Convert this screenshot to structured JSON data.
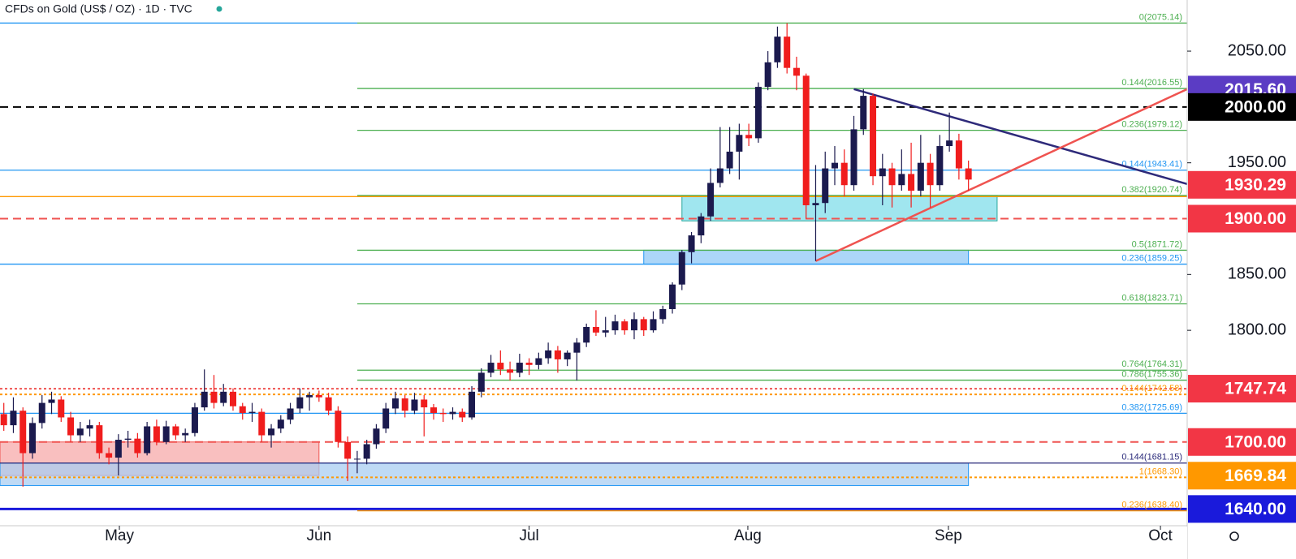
{
  "chart_data": {
    "type": "candlestick",
    "title": "CFDs on Gold (US$ / OZ) · 1D · TVC",
    "up_color": "#1b1a4e",
    "down_color": "#f01d1d",
    "xlim": [
      -0.4,
      123.9
    ],
    "ylim": [
      1625,
      2095.8
    ],
    "xticks": [
      {
        "value": 12.1,
        "label": "May"
      },
      {
        "value": 33,
        "label": "Jun"
      },
      {
        "value": 55,
        "label": "Jul"
      },
      {
        "value": 77.9,
        "label": "Aug"
      },
      {
        "value": 98.9,
        "label": "Sep"
      },
      {
        "value": 121.1,
        "label": "Oct"
      }
    ],
    "yticks": [
      {
        "value": 2050,
        "label": "2050.00"
      },
      {
        "value": 1950,
        "label": "1950.00"
      },
      {
        "value": 1850,
        "label": "1850.00"
      },
      {
        "value": 1800,
        "label": "1800.00"
      }
    ],
    "open": [
      1725,
      1715,
      1728,
      1690,
      1717,
      1735,
      1738,
      1722,
      1706,
      1712,
      1715,
      1690,
      1686,
      1702,
      1703,
      1690,
      1714,
      1700,
      1714,
      1706,
      1708,
      1731,
      1745,
      1735,
      1745,
      1732,
      1726,
      1727,
      1706,
      1712,
      1720,
      1730,
      1740,
      1742,
      1740,
      1728,
      1700,
      1685,
      1685,
      1698,
      1712,
      1730,
      1739,
      1728,
      1738,
      1731,
      1726,
      1725,
      1727,
      1722,
      1745,
      1762,
      1771,
      1765,
      1762,
      1771,
      1769,
      1775,
      1782,
      1774,
      1780,
      1789,
      1803,
      1798,
      1800,
      1808,
      1800,
      1810,
      1800,
      1810,
      1819,
      1841,
      1870,
      1885,
      1902,
      1932,
      1945,
      1960,
      1975,
      1972,
      2018,
      2040,
      2063,
      2035,
      2028,
      1912,
      1914,
      1945,
      1950,
      1930,
      1980,
      2010,
      1938,
      1945,
      1930,
      1940,
      1925,
      1950,
      1930,
      1965,
      1970,
      1945
    ],
    "high": [
      1735,
      1740,
      1731,
      1722,
      1742,
      1745,
      1741,
      1727,
      1718,
      1720,
      1718,
      1695,
      1707,
      1710,
      1708,
      1718,
      1720,
      1719,
      1716,
      1712,
      1735,
      1765,
      1760,
      1752,
      1748,
      1735,
      1735,
      1730,
      1716,
      1724,
      1735,
      1748,
      1745,
      1746,
      1744,
      1732,
      1705,
      1692,
      1702,
      1716,
      1735,
      1745,
      1742,
      1744,
      1742,
      1734,
      1730,
      1731,
      1730,
      1750,
      1766,
      1778,
      1782,
      1772,
      1779,
      1775,
      1780,
      1789,
      1786,
      1782,
      1793,
      1806,
      1818,
      1812,
      1814,
      1810,
      1816,
      1812,
      1817,
      1822,
      1843,
      1872,
      1888,
      1905,
      1945,
      1982,
      1982,
      1985,
      1985,
      2022,
      2050,
      2072,
      2075,
      2045,
      2030,
      1948,
      1960,
      1965,
      1962,
      1992,
      2016,
      2012,
      1958,
      1950,
      1962,
      1968,
      1975,
      1958,
      1975,
      1995,
      1976,
      1952
    ],
    "low": [
      1710,
      1708,
      1660,
      1685,
      1712,
      1725,
      1718,
      1700,
      1700,
      1705,
      1685,
      1680,
      1670,
      1695,
      1686,
      1688,
      1697,
      1698,
      1702,
      1700,
      1705,
      1728,
      1730,
      1732,
      1728,
      1720,
      1718,
      1700,
      1695,
      1708,
      1716,
      1726,
      1728,
      1736,
      1724,
      1695,
      1665,
      1672,
      1680,
      1694,
      1708,
      1725,
      1722,
      1725,
      1705,
      1720,
      1718,
      1720,
      1718,
      1720,
      1740,
      1758,
      1760,
      1755,
      1758,
      1760,
      1765,
      1770,
      1762,
      1768,
      1755,
      1785,
      1795,
      1794,
      1796,
      1796,
      1792,
      1795,
      1798,
      1806,
      1815,
      1836,
      1860,
      1878,
      1898,
      1928,
      1940,
      1935,
      1965,
      1968,
      2015,
      2035,
      2030,
      2015,
      1900,
      1862,
      1905,
      1930,
      1920,
      1925,
      1975,
      1930,
      1912,
      1910,
      1925,
      1910,
      1920,
      1910,
      1925,
      1960,
      1935,
      1925
    ],
    "close": [
      1715,
      1728,
      1690,
      1717,
      1735,
      1738,
      1722,
      1706,
      1712,
      1715,
      1690,
      1686,
      1702,
      1703,
      1690,
      1714,
      1700,
      1714,
      1706,
      1708,
      1731,
      1745,
      1735,
      1745,
      1732,
      1726,
      1727,
      1706,
      1712,
      1720,
      1730,
      1740,
      1742,
      1740,
      1728,
      1700,
      1685,
      1685,
      1698,
      1712,
      1730,
      1739,
      1728,
      1738,
      1731,
      1726,
      1725,
      1727,
      1722,
      1745,
      1762,
      1771,
      1765,
      1762,
      1771,
      1769,
      1775,
      1782,
      1774,
      1780,
      1789,
      1803,
      1798,
      1800,
      1808,
      1800,
      1810,
      1800,
      1810,
      1819,
      1841,
      1870,
      1885,
      1902,
      1932,
      1945,
      1960,
      1975,
      1972,
      2018,
      2040,
      2063,
      2035,
      2028,
      1912,
      1914,
      1945,
      1950,
      1930,
      1980,
      2010,
      1938,
      1945,
      1930,
      1940,
      1925,
      1950,
      1930,
      1965,
      1970,
      1945,
      1935
    ],
    "zones": [
      {
        "low": 1670,
        "high": 1700,
        "from": -0.4,
        "to": 33,
        "color": "#f7a9a9",
        "border": "#ef5350"
      },
      {
        "low": 1661,
        "high": 1681,
        "from": -0.4,
        "to": 101,
        "color": "#a9cdf2",
        "border": "#2196f3"
      },
      {
        "low": 1859.25,
        "high": 1871.72,
        "from": 67,
        "to": 101,
        "color": "#90c8f5",
        "border": "#2196f3"
      },
      {
        "low": 1898,
        "high": 1920.74,
        "from": 71,
        "to": 104,
        "color": "#80deea",
        "border": "#26a69a"
      }
    ],
    "levels": [
      {
        "value": 2075.14,
        "label": "0(2075.14)",
        "color": "#4caf50",
        "style": "solid",
        "span": "right"
      },
      {
        "value": 2075.14,
        "color": "#2196f3",
        "style": "solid",
        "span": "left"
      },
      {
        "value": 2016.55,
        "label": "0.144(2016.55)",
        "color": "#4caf50",
        "style": "solid",
        "span": "right"
      },
      {
        "value": 2000,
        "color": "#000000",
        "style": "dashed",
        "span": "full"
      },
      {
        "value": 1979.12,
        "label": "0.236(1979.12)",
        "color": "#4caf50",
        "style": "solid",
        "span": "right"
      },
      {
        "value": 1943.41,
        "label": "0.144(1943.41)",
        "color": "#2196f3",
        "style": "solid",
        "span": "full"
      },
      {
        "value": 1920.74,
        "label": "0.382(1920.74)",
        "color": "#4caf50",
        "style": "solid",
        "span": "right"
      },
      {
        "value": 1919.74,
        "color": "#ff9800",
        "style": "solid",
        "span": "full"
      },
      {
        "value": 1900,
        "color": "#ef5350",
        "style": "dashed",
        "span": "full"
      },
      {
        "value": 1871.72,
        "label": "0.5(1871.72)",
        "color": "#4caf50",
        "style": "solid",
        "span": "right"
      },
      {
        "value": 1859.25,
        "label": "0.236(1859.25)",
        "color": "#2196f3",
        "style": "solid",
        "span": "full"
      },
      {
        "value": 1823.71,
        "label": "0.618(1823.71)",
        "color": "#4caf50",
        "style": "solid",
        "span": "right"
      },
      {
        "value": 1764.31,
        "label": "0.764(1764.31)",
        "color": "#4caf50",
        "style": "solid",
        "span": "right"
      },
      {
        "value": 1755.36,
        "label": "0.786(1755.36)",
        "color": "#4caf50",
        "style": "solid",
        "span": "right"
      },
      {
        "value": 1747.74,
        "color": "#ef5350",
        "style": "dotted",
        "span": "full"
      },
      {
        "value": 1742.58,
        "label": "0.144(1742.58)",
        "color": "#ff9800",
        "style": "dotted",
        "span": "full"
      },
      {
        "value": 1725.69,
        "label": "0.382(1725.69)",
        "color": "#2196f3",
        "style": "solid",
        "span": "full"
      },
      {
        "value": 1700,
        "color": "#ef5350",
        "style": "dashed",
        "span": "full"
      },
      {
        "value": 1681.15,
        "label": "0.144(1681.15)",
        "color": "#2a2a7a",
        "style": "solid",
        "span": "full"
      },
      {
        "value": 1668.3,
        "label": "1(1668.30)",
        "color": "#ff9800",
        "style": "dotted",
        "span": "full"
      },
      {
        "value": 1640,
        "color": "#1a1adb",
        "style": "thick",
        "span": "full"
      },
      {
        "value": 1638.4,
        "label": "0.236(1638.40)",
        "color": "#ff9800",
        "style": "solid",
        "span": "right"
      }
    ],
    "trendlines": [
      {
        "points": [
          [
            89,
            2016
          ],
          [
            123.9,
            1931
          ]
        ],
        "color": "#2e2a7a"
      },
      {
        "points": [
          [
            85,
            1862
          ],
          [
            123.9,
            2016
          ]
        ],
        "color": "#ef5350"
      }
    ],
    "price_tags": [
      {
        "value": 2015.6,
        "label": "2015.60",
        "color": "#5b3cc4"
      },
      {
        "value": 2000,
        "label": "2000.00",
        "color": "#000000"
      },
      {
        "value": 1930.29,
        "label": "1930.29",
        "color": "#f23645"
      },
      {
        "value": 1900,
        "label": "1900.00",
        "color": "#f23645"
      },
      {
        "value": 1747.74,
        "label": "1747.74",
        "color": "#f23645"
      },
      {
        "value": 1700,
        "label": "1700.00",
        "color": "#f23645"
      },
      {
        "value": 1669.84,
        "label": "1669.84",
        "color": "#ff9800"
      },
      {
        "value": 1640,
        "label": "1640.00",
        "color": "#1a1adb"
      }
    ]
  }
}
